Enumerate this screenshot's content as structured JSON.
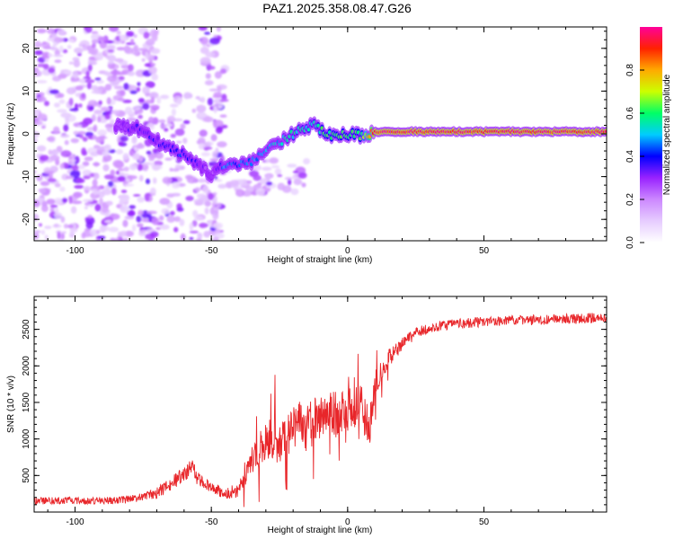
{
  "title": "PAZ1.2025.358.08.47.G26",
  "colors": {
    "snr_line": "#e8262a",
    "axis": "#000000",
    "colorbar": [
      "#ffffff",
      "#e6ccff",
      "#cc88ff",
      "#9922ff",
      "#0000ff",
      "#00ccff",
      "#00ff66",
      "#ccff00",
      "#ffaa00",
      "#ff2200",
      "#ff0099"
    ]
  },
  "chart_data": [
    {
      "type": "heatmap",
      "title": "PAZ1.2025.358.08.47.G26",
      "xlabel": "Height of straight line (km)",
      "ylabel": "Frequency (Hz)",
      "xlim": [
        -115,
        95
      ],
      "ylim": [
        -25,
        25
      ],
      "xticks": [
        -100,
        -50,
        0,
        50
      ],
      "yticks": [
        -20,
        -10,
        0,
        10,
        20
      ],
      "xtick_labels": [
        "-100",
        "-50",
        "0",
        "50"
      ],
      "ytick_labels": [
        "-20",
        "-10",
        "0",
        "10",
        "20"
      ],
      "ridge": {
        "x": [
          -85,
          -78,
          -72,
          -66,
          -60,
          -55,
          -50,
          -45,
          -40,
          -35,
          -30,
          -25,
          -20,
          -15,
          -12,
          -8,
          -4,
          0,
          5,
          10,
          20,
          40,
          60,
          80,
          95
        ],
        "y": [
          2,
          1.5,
          -1,
          -3,
          -5,
          -7,
          -10,
          -7,
          -7.5,
          -6.5,
          -4,
          -2,
          0,
          1.5,
          2,
          0,
          -0.5,
          0,
          -0.5,
          0.5,
          0.5,
          0.5,
          0.5,
          0.5,
          0.5
        ],
        "amplitude": [
          0.25,
          0.35,
          0.35,
          0.35,
          0.4,
          0.35,
          0.25,
          0.45,
          0.45,
          0.45,
          0.5,
          0.5,
          0.55,
          0.55,
          0.55,
          0.6,
          0.6,
          0.6,
          0.6,
          0.9,
          0.9,
          0.9,
          0.9,
          0.9,
          0.9
        ]
      },
      "colorbar": {
        "label": "Normalized spectral amplitude",
        "range": [
          0,
          1
        ],
        "ticks": [
          0.0,
          0.2,
          0.4,
          0.6,
          0.8
        ],
        "tick_labels": [
          "0.0",
          "0.2",
          "0.4",
          "0.6",
          "0.8"
        ]
      }
    },
    {
      "type": "line",
      "xlabel": "Height of straight line (km)",
      "ylabel": "SNR (10 * v/v)",
      "xlim": [
        -115,
        95
      ],
      "ylim": [
        0,
        2950
      ],
      "xticks": [
        -100,
        -50,
        0,
        50
      ],
      "yticks": [
        500,
        1000,
        1500,
        2000,
        2500
      ],
      "xtick_labels": [
        "-100",
        "-50",
        "0",
        "50"
      ],
      "ytick_labels": [
        "500",
        "1000",
        "1500",
        "2000",
        "2500"
      ],
      "series": [
        {
          "name": "SNR",
          "x": [
            -115,
            -105,
            -95,
            -85,
            -80,
            -75,
            -70,
            -65,
            -60,
            -57,
            -55,
            -50,
            -45,
            -40,
            -38,
            -35,
            -30,
            -28,
            -25,
            -20,
            -15,
            -12,
            -10,
            -5,
            0,
            5,
            6,
            8,
            10,
            12,
            15,
            20,
            25,
            30,
            40,
            50,
            60,
            70,
            80,
            90,
            95
          ],
          "values": [
            150,
            160,
            150,
            160,
            170,
            200,
            260,
            380,
            520,
            620,
            450,
            350,
            250,
            300,
            500,
            700,
            950,
            1000,
            900,
            1150,
            1250,
            1300,
            1280,
            1350,
            1400,
            1500,
            1300,
            1150,
            1700,
            1950,
            2100,
            2300,
            2450,
            2520,
            2580,
            2600,
            2620,
            2630,
            2640,
            2650,
            2640
          ],
          "noise": [
            70,
            70,
            70,
            70,
            80,
            90,
            110,
            130,
            150,
            160,
            140,
            110,
            110,
            150,
            260,
            330,
            420,
            430,
            400,
            440,
            460,
            470,
            460,
            450,
            430,
            420,
            400,
            350,
            300,
            250,
            180,
            130,
            110,
            100,
            100,
            100,
            100,
            100,
            100,
            110,
            110
          ],
          "color": "#e8262a"
        }
      ]
    }
  ]
}
